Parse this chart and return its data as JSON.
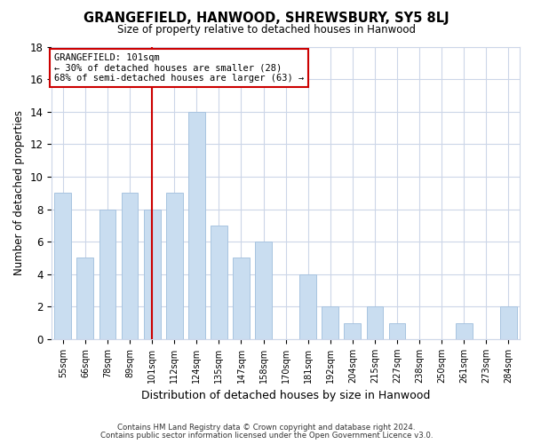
{
  "title": "GRANGEFIELD, HANWOOD, SHREWSBURY, SY5 8LJ",
  "subtitle": "Size of property relative to detached houses in Hanwood",
  "xlabel": "Distribution of detached houses by size in Hanwood",
  "ylabel": "Number of detached properties",
  "bar_labels": [
    "55sqm",
    "66sqm",
    "78sqm",
    "89sqm",
    "101sqm",
    "112sqm",
    "124sqm",
    "135sqm",
    "147sqm",
    "158sqm",
    "170sqm",
    "181sqm",
    "192sqm",
    "204sqm",
    "215sqm",
    "227sqm",
    "238sqm",
    "250sqm",
    "261sqm",
    "273sqm",
    "284sqm"
  ],
  "bar_values": [
    9,
    5,
    8,
    9,
    8,
    9,
    14,
    7,
    5,
    6,
    0,
    4,
    2,
    1,
    2,
    1,
    0,
    0,
    1,
    0,
    2
  ],
  "bar_color": "#c9ddf0",
  "bar_edge_color": "#a8c4e0",
  "vline_x_index": 4,
  "vline_color": "#cc0000",
  "annotation_line1": "GRANGEFIELD: 101sqm",
  "annotation_line2": "← 30% of detached houses are smaller (28)",
  "annotation_line3": "68% of semi-detached houses are larger (63) →",
  "annotation_box_color": "#ffffff",
  "annotation_box_edge_color": "#cc0000",
  "ylim": [
    0,
    18
  ],
  "yticks": [
    0,
    2,
    4,
    6,
    8,
    10,
    12,
    14,
    16,
    18
  ],
  "footer_line1": "Contains HM Land Registry data © Crown copyright and database right 2024.",
  "footer_line2": "Contains public sector information licensed under the Open Government Licence v3.0.",
  "background_color": "#ffffff",
  "grid_color": "#ccd6e8"
}
